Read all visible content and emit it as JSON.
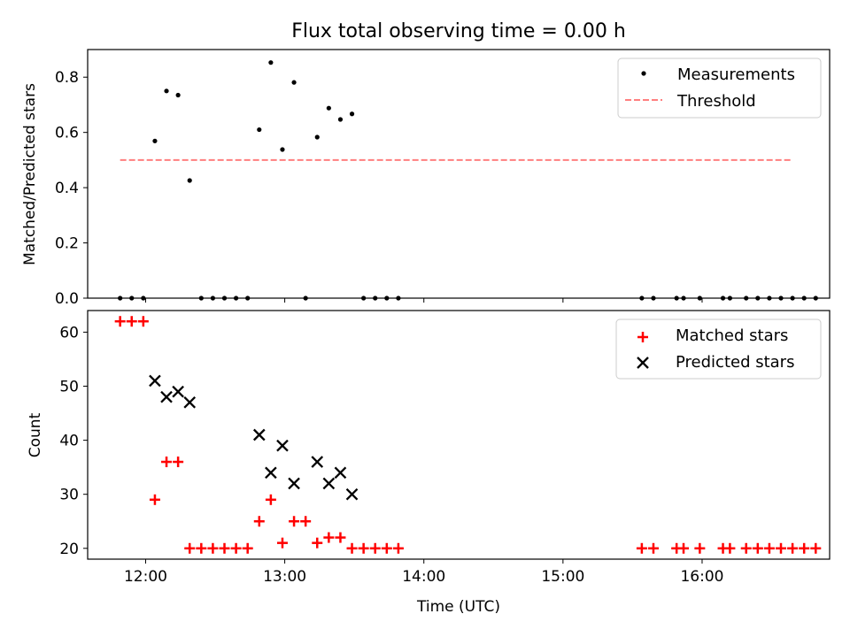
{
  "chart_data": [
    {
      "type": "scatter",
      "title": "Flux total observing time = 0.00 h",
      "xlabel": "",
      "ylabel": "Matched/Predicted stars",
      "xlim": [
        "11:35",
        "16:55"
      ],
      "ylim": [
        0.0,
        0.9
      ],
      "yticks": [
        0.0,
        0.2,
        0.4,
        0.6,
        0.8
      ],
      "ytick_labels": [
        "0.0",
        "0.2",
        "0.4",
        "0.6",
        "0.8"
      ],
      "xticks": [
        "12:00",
        "13:00",
        "14:00",
        "15:00",
        "16:00"
      ],
      "grid": false,
      "legend_position": "top-right",
      "series": [
        {
          "name": "Measurements",
          "marker": "dot",
          "color": "#000000",
          "x": [
            "11:49",
            "11:54",
            "11:59",
            "12:04",
            "12:09",
            "12:14",
            "12:19",
            "12:24",
            "12:29",
            "12:34",
            "12:39",
            "12:44",
            "12:49",
            "12:54",
            "12:59",
            "13:04",
            "13:09",
            "13:14",
            "13:19",
            "13:24",
            "13:29",
            "13:34",
            "13:39",
            "13:44",
            "13:49",
            "15:34",
            "15:39",
            "15:49",
            "15:52",
            "15:59",
            "16:09",
            "16:12",
            "16:19",
            "16:24",
            "16:29",
            "16:34",
            "16:39",
            "16:44",
            "16:49"
          ],
          "y": [
            0,
            0,
            0,
            0.569,
            0.75,
            0.735,
            0.426,
            0,
            0,
            0,
            0,
            0,
            0.61,
            0.853,
            0.538,
            0.781,
            0,
            0.583,
            0.688,
            0.647,
            0.667,
            0,
            0,
            0,
            0,
            0,
            0,
            0,
            0,
            0,
            0,
            0,
            0,
            0,
            0,
            0,
            0,
            0,
            0
          ]
        },
        {
          "name": "Threshold",
          "style": "dashed",
          "color": "#ff7f7f",
          "x": [
            "11:49",
            "16:39"
          ],
          "y": [
            0.5,
            0.5
          ]
        }
      ]
    },
    {
      "type": "scatter",
      "title": "",
      "xlabel": "Time (UTC)",
      "ylabel": "Count",
      "xlim": [
        "11:35",
        "16:55"
      ],
      "ylim": [
        18,
        64
      ],
      "yticks": [
        20,
        30,
        40,
        50,
        60
      ],
      "ytick_labels": [
        "20",
        "30",
        "40",
        "50",
        "60"
      ],
      "xticks": [
        "12:00",
        "13:00",
        "14:00",
        "15:00",
        "16:00"
      ],
      "xtick_labels": [
        "12:00",
        "13:00",
        "14:00",
        "15:00",
        "16:00"
      ],
      "grid": false,
      "legend_position": "top-right",
      "series": [
        {
          "name": "Matched stars",
          "marker": "plus",
          "color": "#ff0000",
          "x": [
            "11:49",
            "11:54",
            "11:59",
            "12:04",
            "12:09",
            "12:14",
            "12:19",
            "12:24",
            "12:29",
            "12:34",
            "12:39",
            "12:44",
            "12:49",
            "12:54",
            "12:59",
            "13:04",
            "13:09",
            "13:14",
            "13:19",
            "13:24",
            "13:29",
            "13:34",
            "13:39",
            "13:44",
            "13:49",
            "15:34",
            "15:39",
            "15:49",
            "15:52",
            "15:59",
            "16:09",
            "16:12",
            "16:19",
            "16:24",
            "16:29",
            "16:34",
            "16:39",
            "16:44",
            "16:49"
          ],
          "y": [
            62,
            62,
            62,
            29,
            36,
            36,
            20,
            20,
            20,
            20,
            20,
            20,
            25,
            29,
            21,
            25,
            25,
            21,
            22,
            22,
            20,
            20,
            20,
            20,
            20,
            20,
            20,
            20,
            20,
            20,
            20,
            20,
            20,
            20,
            20,
            20,
            20,
            20,
            20
          ]
        },
        {
          "name": "Predicted stars",
          "marker": "x",
          "color": "#000000",
          "x": [
            "12:04",
            "12:09",
            "12:14",
            "12:19",
            "12:49",
            "12:54",
            "12:59",
            "13:04",
            "13:14",
            "13:19",
            "13:24",
            "13:29"
          ],
          "y": [
            51,
            48,
            49,
            47,
            41,
            34,
            39,
            32,
            36,
            32,
            34,
            30
          ]
        }
      ]
    }
  ]
}
